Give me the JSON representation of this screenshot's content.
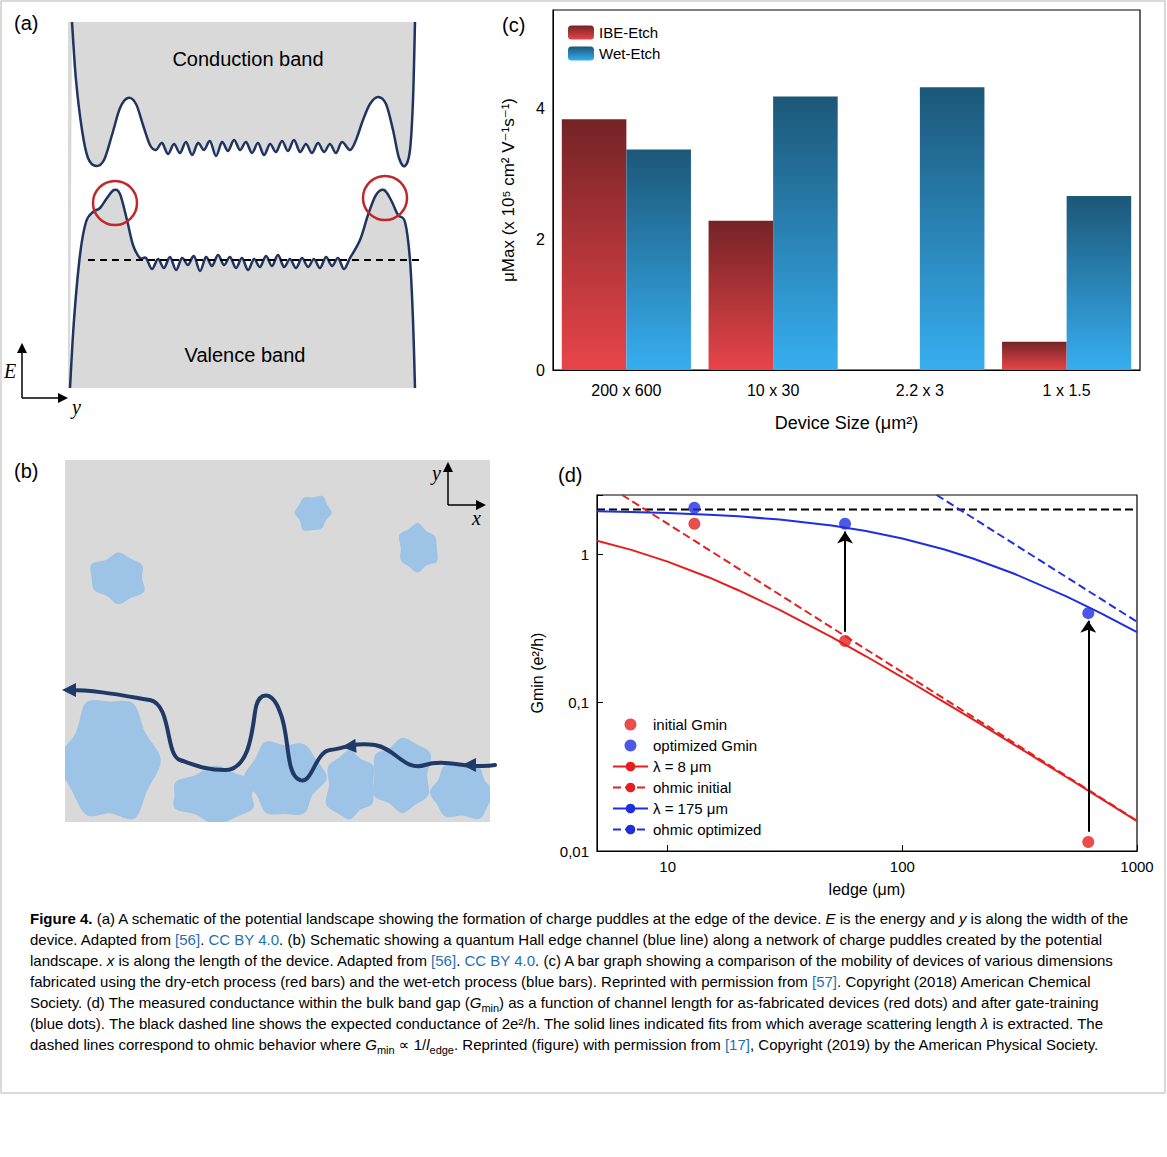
{
  "panels": {
    "a": {
      "label": "(a)",
      "conduction": "Conduction band",
      "valence": "Valence band",
      "energy_axis": "E",
      "position_axis": "y"
    },
    "b": {
      "label": "(b)",
      "y_axis": "y",
      "x_axis": "x"
    }
  },
  "chart_data": [
    {
      "type": "bar",
      "title": "(c)",
      "categories": [
        "200 x 600",
        "10 x 30",
        "2.2 x 3",
        "1 x 1.5"
      ],
      "series": [
        {
          "name": "IBE-Etch",
          "color": "#e8454a",
          "values": [
            3.83,
            2.28,
            null,
            0.43
          ]
        },
        {
          "name": "Wet-Etch",
          "color": "#37aef0",
          "values": [
            3.37,
            4.18,
            4.32,
            2.66
          ]
        }
      ],
      "x_label": "Device Size (μm²)",
      "y_label": "μMax (x 10⁵ cm² V⁻¹s⁻¹)",
      "ylim": [
        0,
        5.5
      ],
      "yticks": [
        0,
        2,
        4
      ],
      "grid": false,
      "legend": "upper left"
    },
    {
      "type": "line",
      "title": "(d)",
      "log": true,
      "x_label": "ledge (μm)",
      "y_label": "Gmin (e²/h)",
      "xlim": [
        5,
        1000
      ],
      "xticks": [
        10,
        100,
        1000
      ],
      "ylim": [
        0.01,
        2.5
      ],
      "yticks": [
        {
          "value": 0.01,
          "label": "0,01"
        },
        {
          "value": 0.1,
          "label": "0,1"
        },
        1
      ],
      "grid": false,
      "legend": "lower left",
      "series": [
        {
          "name": "initial Gmin",
          "type": "scatter",
          "marker": "circle",
          "color": "#e3201f",
          "x": [
            13,
            57,
            620
          ],
          "values": [
            1.6,
            0.26,
            0.0115
          ]
        },
        {
          "name": "optimized Gmin",
          "type": "scatter",
          "marker": "circle",
          "color": "#1f2fe0",
          "x": [
            13,
            57,
            620
          ],
          "values": [
            2.05,
            1.6,
            0.4
          ]
        },
        {
          "name": "λ = 8 μm",
          "type": "line",
          "line_style": "solid",
          "color": "#e3201f",
          "x": [
            5,
            7,
            10,
            15,
            20,
            30,
            50,
            70,
            100,
            150,
            200,
            300,
            500,
            700,
            1000
          ],
          "values": [
            1.231,
            1.067,
            0.889,
            0.696,
            0.571,
            0.421,
            0.276,
            0.205,
            0.148,
            0.101,
            0.0769,
            0.0519,
            0.0315,
            0.0226,
            0.0159
          ]
        },
        {
          "name": "ohmic initial",
          "type": "line",
          "line_style": "dashed",
          "color": "#e3201f",
          "x": [
            6.4,
            1000
          ],
          "values": [
            2.5,
            0.016
          ]
        },
        {
          "name": "λ = 175 μm",
          "type": "line",
          "line_style": "solid",
          "color": "#1f2fe0",
          "x": [
            5,
            7,
            10,
            15,
            20,
            30,
            50,
            70,
            100,
            150,
            200,
            300,
            500,
            700,
            1000
          ],
          "values": [
            1.944,
            1.923,
            1.892,
            1.842,
            1.795,
            1.707,
            1.556,
            1.429,
            1.273,
            1.077,
            0.933,
            0.737,
            0.519,
            0.4,
            0.298
          ]
        },
        {
          "name": "ohmic optimized",
          "type": "line",
          "line_style": "dashed",
          "color": "#1f2fe0",
          "x": [
            140,
            1000
          ],
          "values": [
            2.5,
            0.35
          ]
        }
      ],
      "hlines": [
        {
          "y": 2,
          "color": "#000000",
          "line_style": "dashed"
        }
      ],
      "arrows": [
        {
          "x": 57,
          "from": 0.3,
          "to": 1.42
        },
        {
          "x": 620,
          "from": 0.0135,
          "to": 0.355
        }
      ]
    }
  ],
  "caption": [
    {
      "text": "Figure 4.",
      "style": "bold"
    },
    {
      "text": " (a) A schematic of the potential landscape showing the formation of charge puddles at the edge of the device. "
    },
    {
      "text": "E",
      "style": "italic"
    },
    {
      "text": " is the energy and "
    },
    {
      "text": "y",
      "style": "italic"
    },
    {
      "text": " is along the width of the device. Adapted from "
    },
    {
      "text": "[56]",
      "style": "link"
    },
    {
      "text": ". "
    },
    {
      "text": "CC BY 4.0",
      "style": "link"
    },
    {
      "text": ". (b) Schematic showing a quantum Hall edge channel (blue line) along a network of charge puddles created by the potential landscape. "
    },
    {
      "text": "x",
      "style": "italic"
    },
    {
      "text": " is along the length of the device. Adapted from "
    },
    {
      "text": "[56]",
      "style": "link"
    },
    {
      "text": ". "
    },
    {
      "text": "CC BY 4.0",
      "style": "link"
    },
    {
      "text": ". (c) A bar graph showing a comparison of the mobility of devices of various dimensions fabricated using the dry-etch process (red bars) and the wet-etch process (blue bars). Reprinted with permission from "
    },
    {
      "text": "[57]",
      "style": "link"
    },
    {
      "text": ". Copyright (2018) American Chemical Society. (d) The measured conductance within the bulk band gap ("
    },
    {
      "text": "G",
      "style": "italic"
    },
    {
      "text": "min",
      "style": "sub"
    },
    {
      "text": ") as a function of channel length for as-fabricated devices (red dots) and after gate-training (blue dots). The black dashed line shows the expected conductance of 2e²/h. The solid lines indicated fits from which average scattering length "
    },
    {
      "text": "λ",
      "style": "italic"
    },
    {
      "text": " is extracted. The dashed lines correspond to ohmic behavior where "
    },
    {
      "text": "G",
      "style": "italic"
    },
    {
      "text": "min",
      "style": "sub"
    },
    {
      "text": " ∝ 1/"
    },
    {
      "text": "l",
      "style": "italic"
    },
    {
      "text": "edge",
      "style": "sub"
    },
    {
      "text": ". Reprinted (figure) with permission from "
    },
    {
      "text": "[17]",
      "style": "link"
    },
    {
      "text": ", Copyright (2019) by the American Physical Society."
    }
  ]
}
